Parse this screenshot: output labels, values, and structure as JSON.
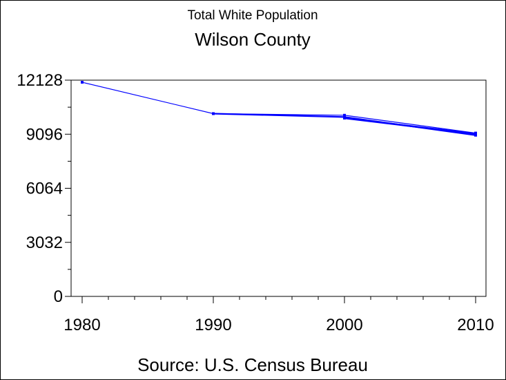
{
  "chart_data": {
    "type": "line",
    "title": "Total White Population",
    "subtitle": "Wilson County",
    "footnote": "Source: U.S. Census Bureau",
    "xlabel": "",
    "ylabel": "",
    "x_ticks": [
      "1980",
      "1990",
      "2000",
      "2010"
    ],
    "y_ticks": [
      "0",
      "3032",
      "6064",
      "9096",
      "12128"
    ],
    "xlim": [
      1980,
      2010
    ],
    "ylim": [
      0,
      12128
    ],
    "grid": false,
    "colors": {
      "line": "#0000ff",
      "axis": "#000000"
    },
    "series": [
      {
        "x": [
          1980,
          1990,
          2000,
          2010
        ],
        "values": [
          12010,
          10250,
          10160,
          9160
        ]
      },
      {
        "x": [
          1990,
          2000,
          2010
        ],
        "values": [
          10250,
          10060,
          9040
        ]
      },
      {
        "x": [
          2000,
          2010
        ],
        "values": [
          10000,
          9110
        ]
      }
    ]
  }
}
